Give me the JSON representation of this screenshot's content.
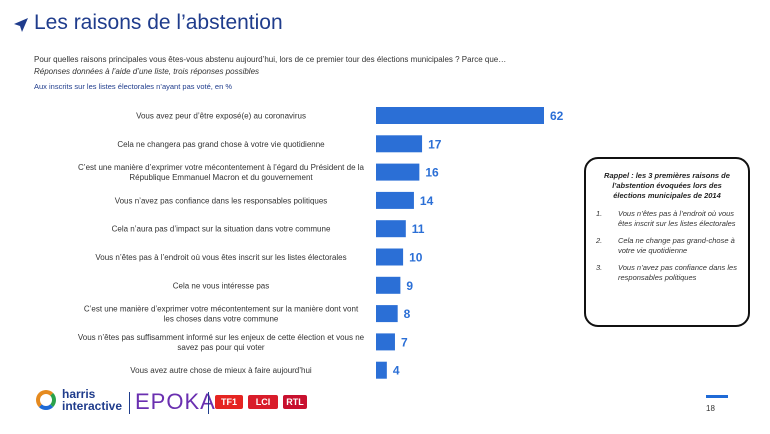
{
  "header": {
    "title": "Les raisons de l’abstention",
    "question": "Pour quelles raisons principales vous êtes-vous abstenu aujourd’hui, lors de ce premier tour des élections municipales ? Parce que…",
    "subquestion": "Réponses données à l’aide d’une liste, trois réponses possibles",
    "base": "Aux inscrits sur les listes électorales n’ayant pas voté, en %"
  },
  "chart_data": {
    "type": "bar",
    "orientation": "horizontal",
    "categories": [
      "Vous avez peur d’être exposé(e) au coronavirus",
      "Cela ne changera pas grand chose à votre vie quotidienne",
      "C’est une manière d’exprimer votre mécontentement à l’égard du Président de la République Emmanuel Macron et du gouvernement",
      "Vous n’avez pas confiance dans les responsables politiques",
      "Cela n’aura pas d’impact sur la situation dans votre commune",
      "Vous n’êtes pas à l’endroit où vous êtes inscrit sur les listes électorales",
      "Cela ne vous intéresse pas",
      "C’est une manière d’exprimer votre mécontentement sur la manière dont vont les choses dans votre commune",
      "Vous n’êtes pas suffisamment informé sur les enjeux de cette élection et vous ne savez pas pour qui voter",
      "Vous avez autre chose de mieux à faire aujourd’hui"
    ],
    "category_lines": [
      [
        "Vous avez peur d’être exposé(e) au coronavirus"
      ],
      [
        "Cela ne changera pas grand chose à votre vie quotidienne"
      ],
      [
        "C’est une manière d’exprimer votre mécontentement à l’égard du Président de la",
        "République Emmanuel Macron et du gouvernement"
      ],
      [
        "Vous n’avez pas confiance dans les responsables politiques"
      ],
      [
        "Cela n’aura pas d’impact sur la situation dans votre commune"
      ],
      [
        "Vous n’êtes pas à l’endroit où vous êtes inscrit sur les listes électorales"
      ],
      [
        "Cela ne vous intéresse pas"
      ],
      [
        "C’est une manière d’exprimer votre mécontentement sur la manière dont vont",
        "les choses dans votre commune"
      ],
      [
        "Vous n’êtes pas suffisamment informé sur les enjeux de cette élection et vous ne",
        "savez pas pour qui voter"
      ],
      [
        "Vous avez autre chose de mieux à faire aujourd’hui"
      ]
    ],
    "values": [
      62,
      17,
      16,
      14,
      11,
      10,
      9,
      8,
      7,
      4
    ],
    "xlim": [
      0,
      62
    ],
    "bar_color": "#2b6fd6",
    "grid": false
  },
  "callout": {
    "title": "Rappel : les 3 premières raisons de l’abstention évoquées lors des élections municipales de 2014",
    "items": [
      {
        "num": "1.",
        "text": "Vous n’êtes pas à l’endroit où vous êtes inscrit sur les listes électorales"
      },
      {
        "num": "2.",
        "text": "Cela ne change pas grand-chose à votre vie quotidienne"
      },
      {
        "num": "3.",
        "text": "Vous n’avez pas confiance dans les responsables politiques"
      }
    ]
  },
  "footer": {
    "harris_line1": "harris",
    "harris_line2": "interactive",
    "epoka": "EPOKA",
    "tf1": "TF1",
    "lci": "LCI",
    "rtl": "RTL",
    "page_number": "18"
  }
}
